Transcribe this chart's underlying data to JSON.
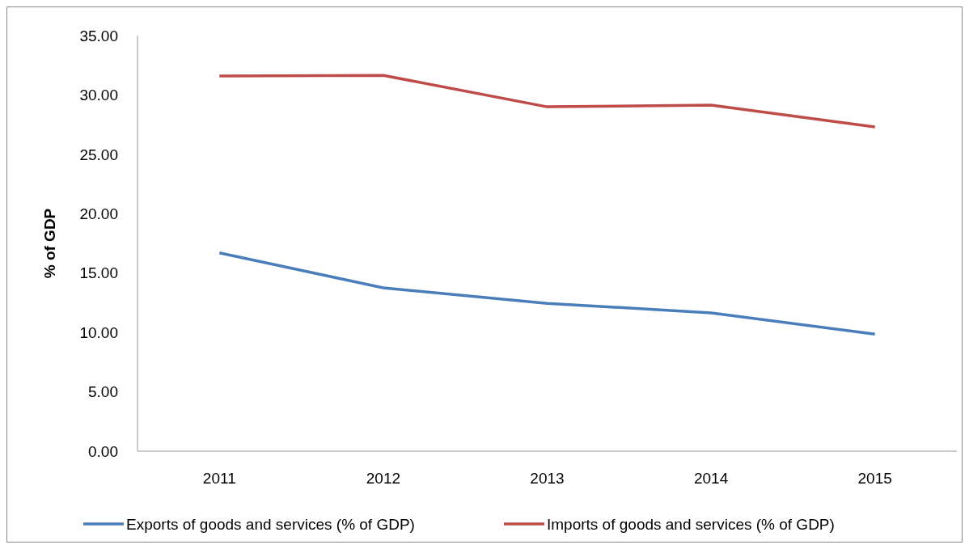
{
  "chart_data": {
    "type": "line",
    "ylabel": "% of GDP",
    "categories": [
      "2011",
      "2012",
      "2013",
      "2014",
      "2015"
    ],
    "series": [
      {
        "name": "Exports of goods and services (% of GDP)",
        "color": "#4a7ebb",
        "values": [
          16.7,
          13.75,
          12.45,
          11.65,
          9.85
        ]
      },
      {
        "name": "Imports of goods and services (% of GDP)",
        "color": "#be4b48",
        "values": [
          31.6,
          31.65,
          29.0,
          29.15,
          27.3
        ]
      }
    ],
    "ylim": [
      0,
      35
    ],
    "yticks": [
      {
        "value": 0,
        "label": "0.00"
      },
      {
        "value": 5,
        "label": "5.00"
      },
      {
        "value": 10,
        "label": "10.00"
      },
      {
        "value": 15,
        "label": "15.00"
      },
      {
        "value": 20,
        "label": "20.00"
      },
      {
        "value": 25,
        "label": "25.00"
      },
      {
        "value": 30,
        "label": "30.00"
      },
      {
        "value": 35,
        "label": "35.00"
      }
    ],
    "grid": false,
    "legend": "bottom",
    "marker": "none",
    "line_style": "solid"
  }
}
